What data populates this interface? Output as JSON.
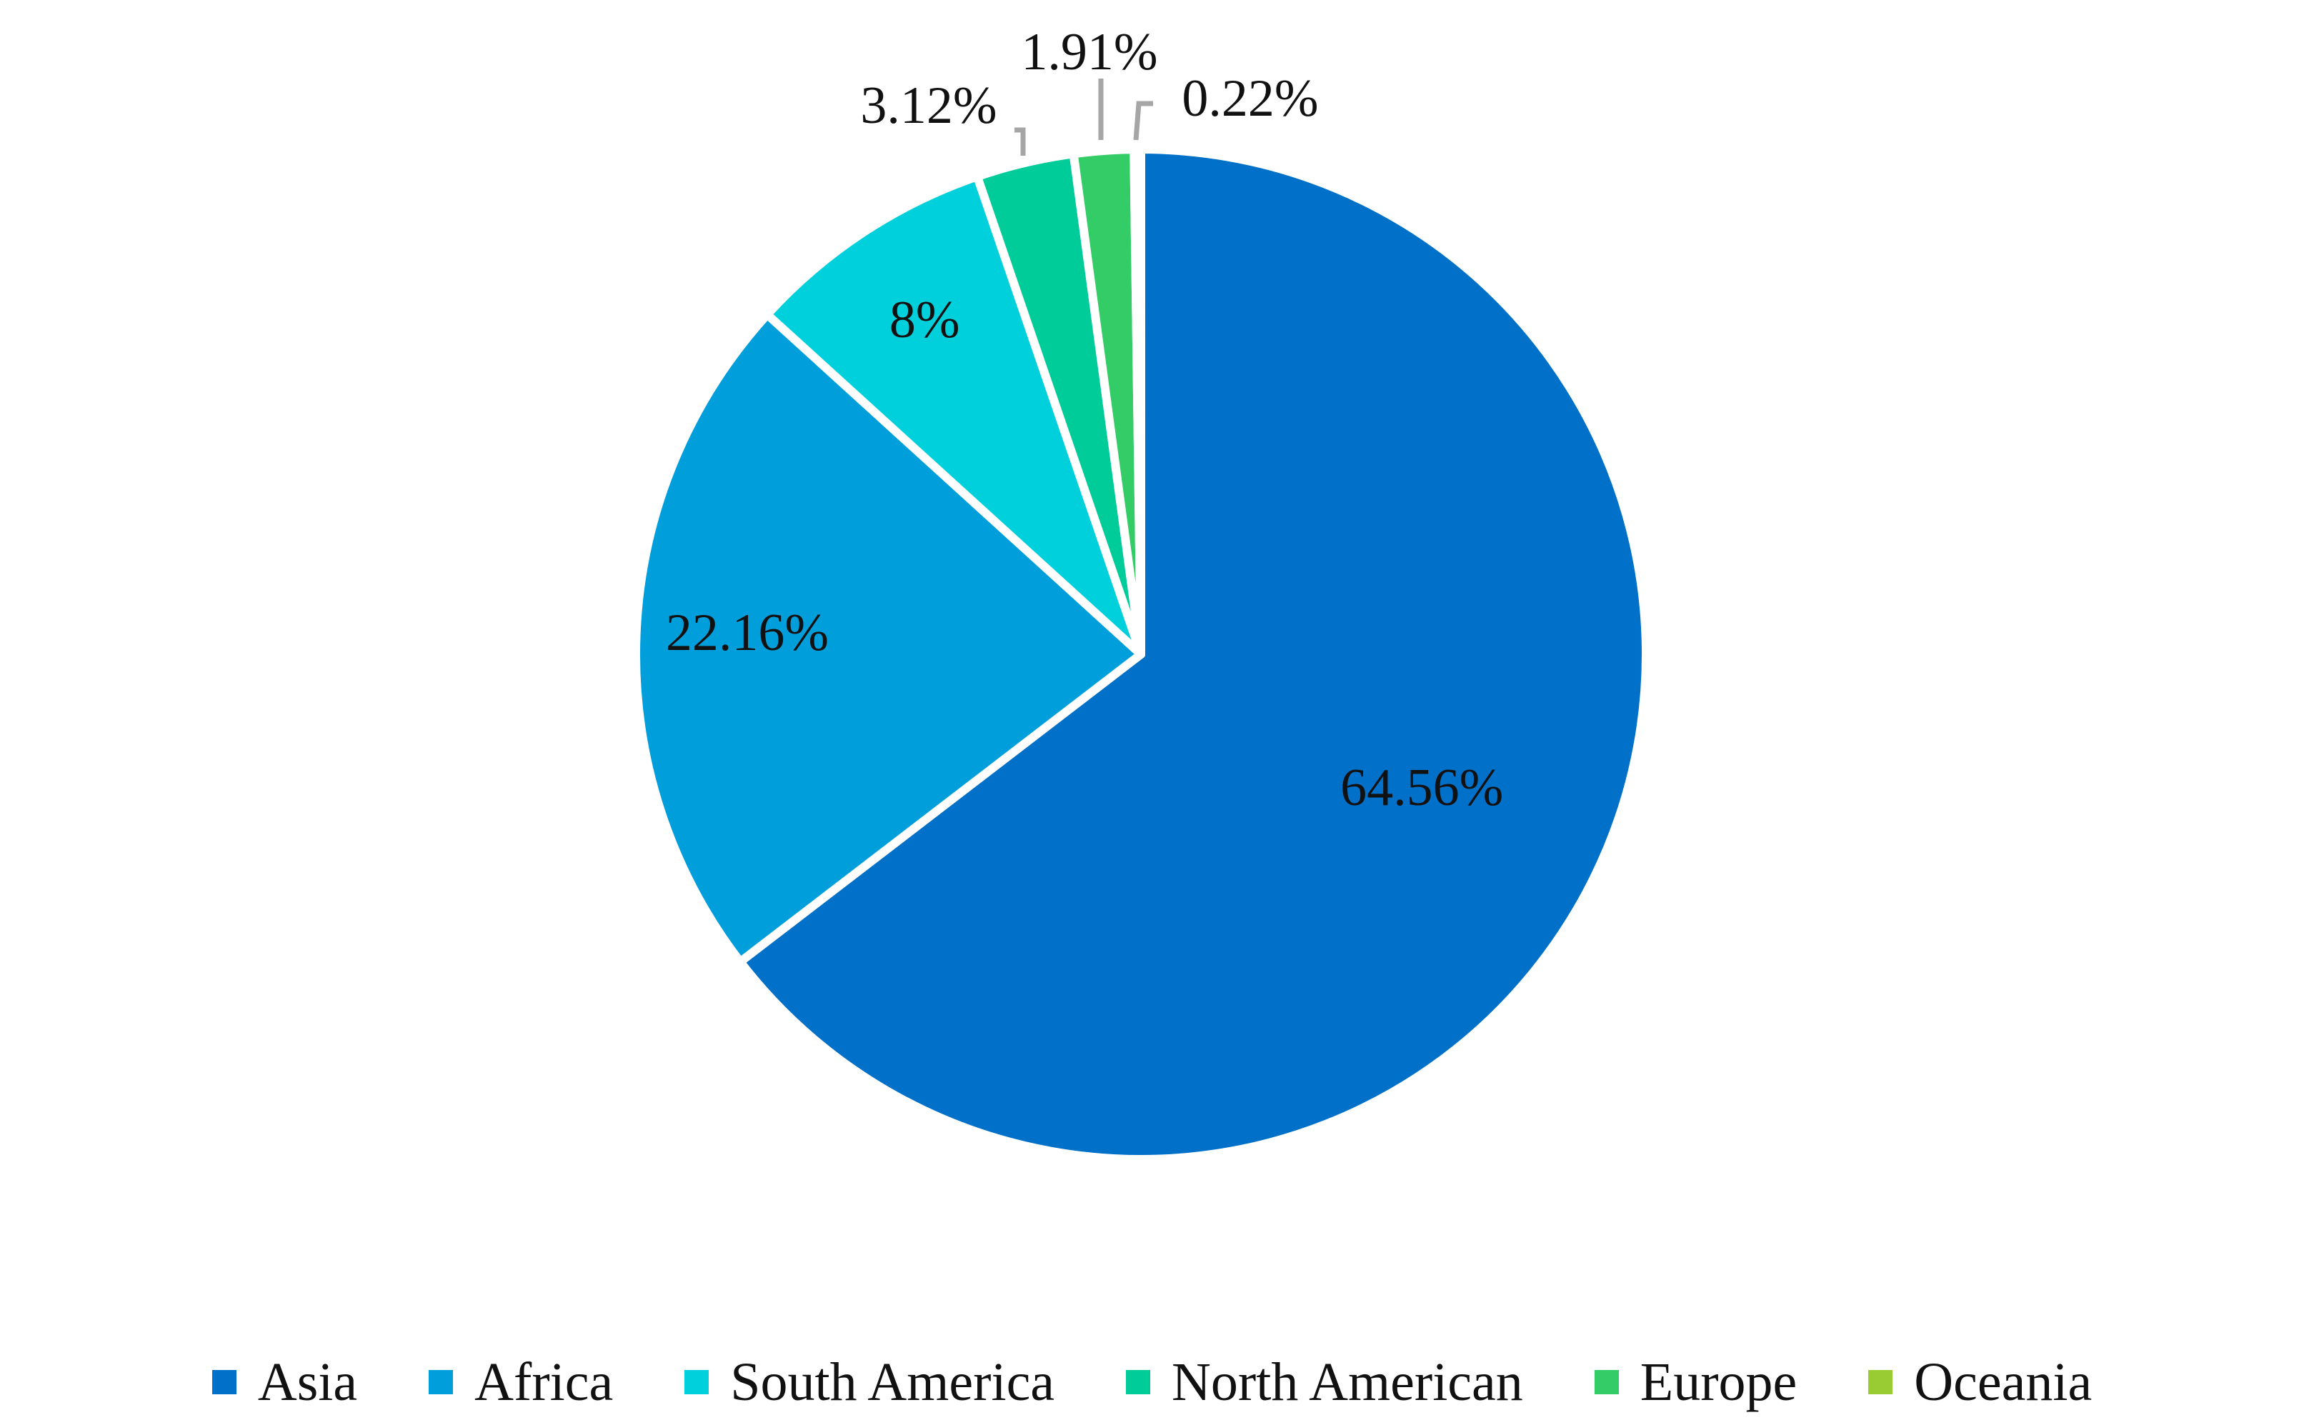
{
  "chart_data": {
    "type": "pie",
    "title": "",
    "categories": [
      "Asia",
      "Africa",
      "South America",
      "North American",
      "Europe",
      "Oceania"
    ],
    "values": [
      64.56,
      22.16,
      8,
      3.12,
      1.91,
      0.22
    ],
    "labels": [
      "64.56%",
      "22.16%",
      "8%",
      "3.12%",
      "1.91%",
      "0.22%"
    ],
    "colors": [
      "#0070C8",
      "#009FDC",
      "#00D0DC",
      "#00CC99",
      "#33CC66",
      "#99CC33"
    ],
    "legend_placement": "bottom",
    "start_angle": "12 o'clock",
    "direction": "clockwise"
  }
}
